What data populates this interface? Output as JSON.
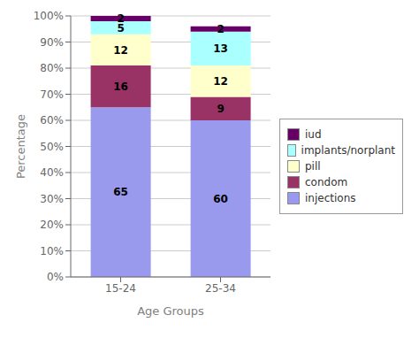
{
  "chart_data": {
    "type": "bar",
    "stacked": true,
    "categories": [
      "15-24",
      "25-34"
    ],
    "series": [
      {
        "name": "injections",
        "color": "#9999ee",
        "values": [
          65,
          60
        ]
      },
      {
        "name": "condom",
        "color": "#993366",
        "values": [
          16,
          9
        ]
      },
      {
        "name": "pill",
        "color": "#ffffcc",
        "values": [
          12,
          12
        ]
      },
      {
        "name": "implants/norplant",
        "color": "#aaffff",
        "values": [
          5,
          13
        ]
      },
      {
        "name": "iud",
        "color": "#660066",
        "values": [
          2,
          2
        ]
      }
    ],
    "xlabel": "Age Groups",
    "ylabel": "Percentage",
    "ylim": [
      0,
      100
    ],
    "yticks": [
      {
        "value": 0,
        "label": "0%"
      },
      {
        "value": 10,
        "label": "10%"
      },
      {
        "value": 20,
        "label": "20%"
      },
      {
        "value": 30,
        "label": "30%"
      },
      {
        "value": 40,
        "label": "40%"
      },
      {
        "value": 50,
        "label": "50%"
      },
      {
        "value": 60,
        "label": "60%"
      },
      {
        "value": 70,
        "label": "70%"
      },
      {
        "value": 80,
        "label": "80%"
      },
      {
        "value": 90,
        "label": "90%"
      },
      {
        "value": 100,
        "label": "100%"
      }
    ],
    "grid": true,
    "legend": "right",
    "data_labels": true
  }
}
